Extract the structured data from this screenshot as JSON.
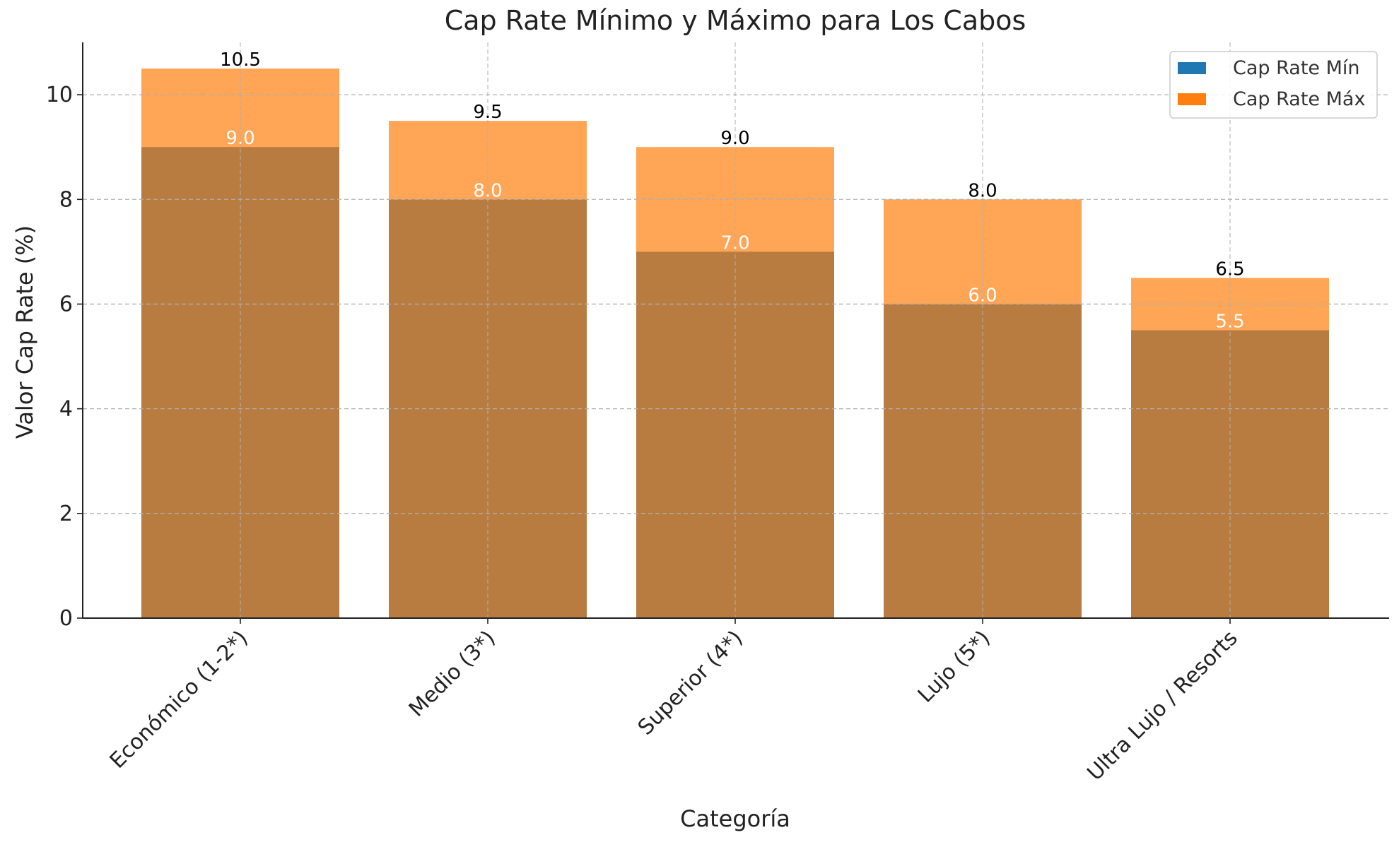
{
  "chart_data": {
    "type": "bar",
    "title": "Cap Rate Mínimo y Máximo para Los Cabos",
    "xlabel": "Categoría",
    "ylabel": "Valor Cap Rate (%)",
    "categories": [
      "Económico (1-2*)",
      "Medio (3*)",
      "Superior (4*)",
      "Lujo (5*)",
      "Ultra Lujo / Resorts"
    ],
    "series": [
      {
        "name": "Cap Rate Mín",
        "values": [
          9.0,
          8.0,
          7.0,
          6.0,
          5.5
        ],
        "color": "#1f77b4",
        "value_labels": [
          "9.0",
          "8.0",
          "7.0",
          "6.0",
          "5.5"
        ]
      },
      {
        "name": "Cap Rate Máx",
        "values": [
          10.5,
          9.5,
          9.0,
          8.0,
          6.5
        ],
        "color": "#ff7f0e",
        "value_labels": [
          "10.5",
          "9.5",
          "9.0",
          "8.0",
          "6.5"
        ]
      }
    ],
    "overlap_color": "#b87b40",
    "ylim": [
      0,
      11
    ],
    "yticks": [
      0,
      2,
      4,
      6,
      8,
      10
    ],
    "ytick_labels": [
      "0",
      "2",
      "4",
      "6",
      "8",
      "10"
    ],
    "grid": true,
    "legend_position": "top-right",
    "bar_mode": "overlaid"
  }
}
